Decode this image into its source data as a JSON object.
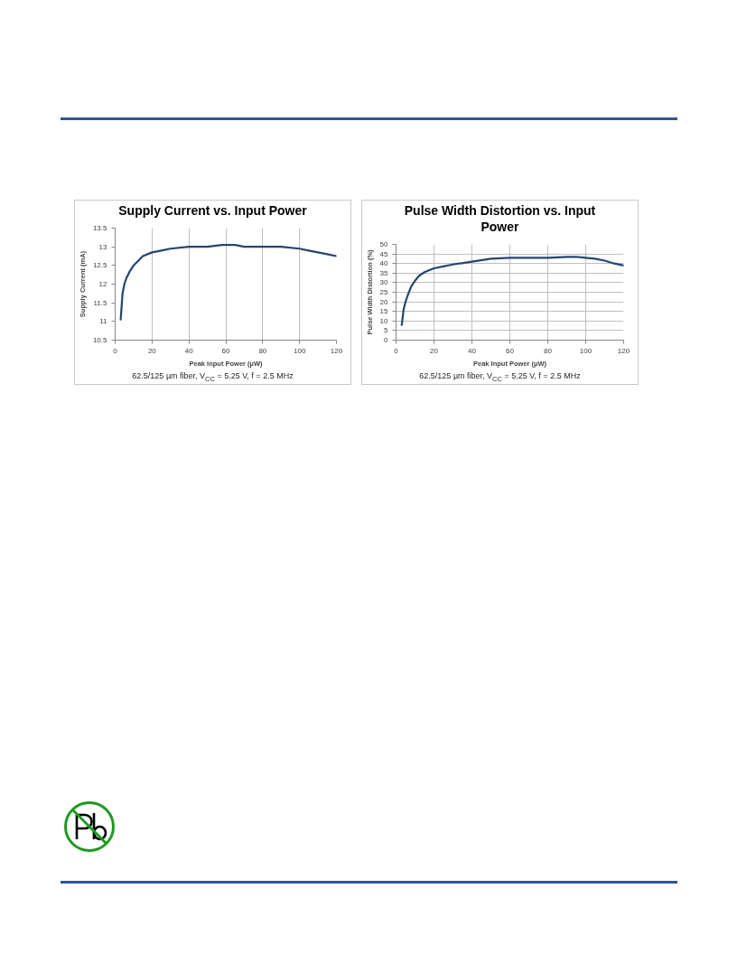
{
  "chart_data": [
    {
      "type": "line",
      "title": "Supply Current vs. Input Power",
      "xlabel": "Peak Input Power (µW)",
      "ylabel": "Supply Current (mA)",
      "annotations": [
        "62.5/125 µm fiber, V$_{CC}$ = 5.25 V, f = 2.5 MHz"
      ],
      "x": [
        3,
        4,
        5,
        6,
        8,
        10,
        12,
        15,
        20,
        25,
        30,
        40,
        50,
        58,
        65,
        70,
        80,
        90,
        100,
        105,
        110,
        115,
        120
      ],
      "series": [
        {
          "color": "#24466f",
          "values": [
            11.05,
            11.75,
            12.0,
            12.15,
            12.35,
            12.5,
            12.6,
            12.75,
            12.85,
            12.9,
            12.95,
            13.0,
            13.0,
            13.05,
            13.05,
            13.0,
            13.0,
            13.0,
            12.95,
            12.9,
            12.85,
            12.8,
            12.75
          ]
        }
      ],
      "xlim": [
        0,
        120
      ],
      "xticks": [
        0,
        20,
        40,
        60,
        80,
        100,
        120
      ],
      "ylim": [
        10.5,
        13.5
      ],
      "yticks": [
        10.5,
        11,
        11.5,
        12,
        12.5,
        13,
        13.5
      ],
      "grid": "x",
      "line_style": "solid"
    },
    {
      "type": "line",
      "title": "Pulse Width Distortion vs. Input Power",
      "xlabel": "Peak Input Power (µW)",
      "ylabel": "Pulse Width Distortion (%)",
      "annotations": [
        "62.5/125 µm fiber, V$_{CC}$ = 5.25 V, f = 2.5 MHz"
      ],
      "x": [
        3,
        4,
        5,
        6,
        8,
        10,
        12,
        15,
        20,
        25,
        30,
        40,
        50,
        60,
        70,
        80,
        90,
        95,
        100,
        105,
        110,
        115,
        120
      ],
      "series": [
        {
          "color": "#24466f",
          "values": [
            8,
            16,
            20,
            23,
            28,
            31,
            33.5,
            35.5,
            37.5,
            38.5,
            39.5,
            41,
            42.5,
            43,
            43,
            43,
            43.5,
            43.5,
            43,
            42.5,
            41.5,
            40,
            39
          ]
        }
      ],
      "xlim": [
        0,
        120
      ],
      "xticks": [
        0,
        20,
        40,
        60,
        80,
        100,
        120
      ],
      "ylim": [
        0,
        50
      ],
      "yticks": [
        0,
        5,
        10,
        15,
        20,
        25,
        30,
        35,
        40,
        45,
        50
      ],
      "grid": true,
      "line_style": "solid"
    }
  ]
}
